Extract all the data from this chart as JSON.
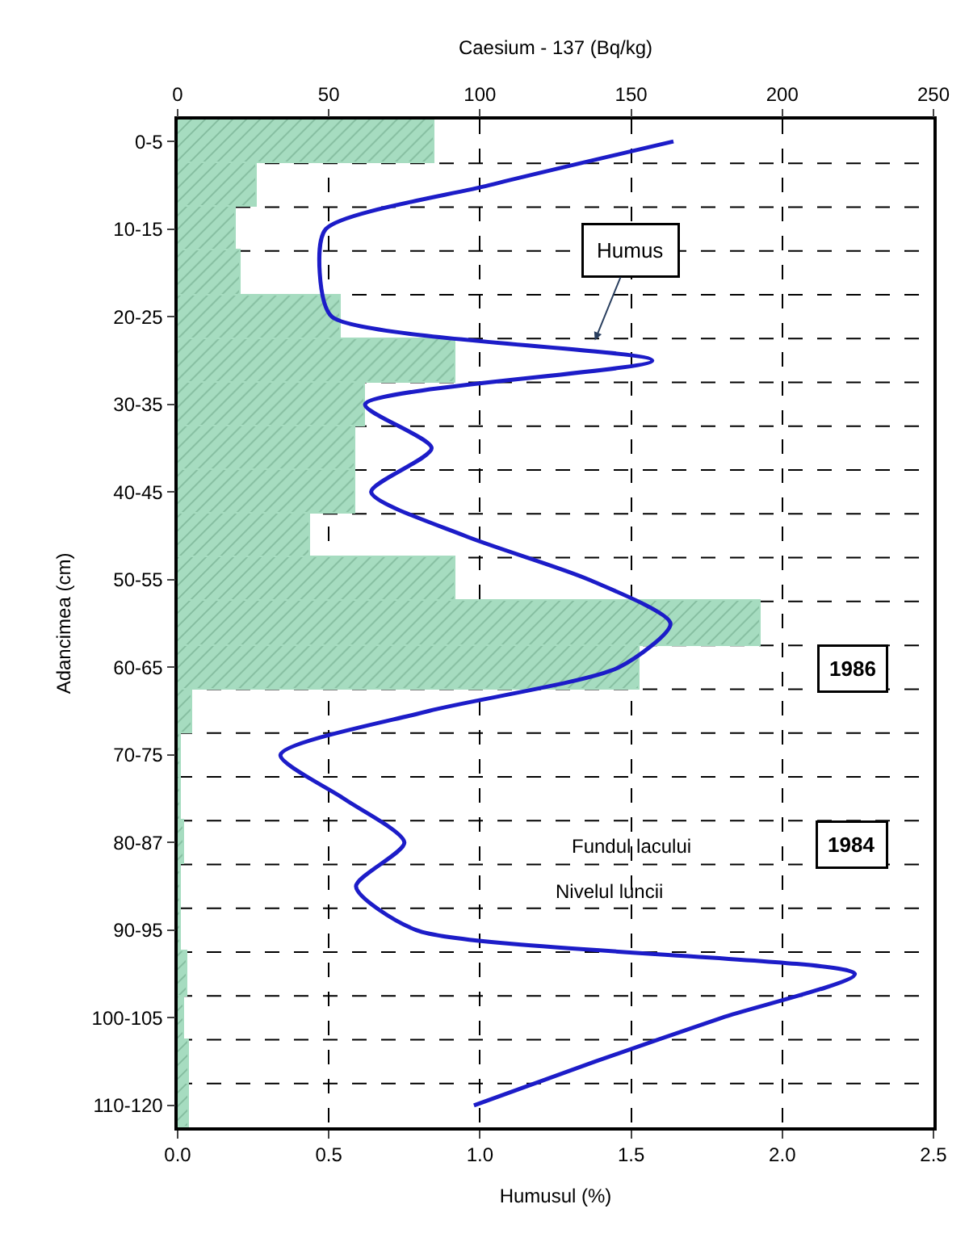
{
  "chart_data": {
    "type": "bar",
    "orientation": "horizontal",
    "categories": [
      "0-5",
      null,
      "10-15",
      null,
      "20-25",
      null,
      "30-35",
      null,
      "40-45",
      null,
      "50-55",
      null,
      "60-65",
      null,
      "70-75",
      null,
      "80-87",
      null,
      "90-95",
      null,
      "100-105",
      null,
      "110-120"
    ],
    "series": [
      {
        "axis": "x2",
        "color": "#a6dcc0",
        "values": [
          85,
          26,
          19,
          21,
          54,
          92,
          62,
          59,
          59,
          44,
          92,
          193,
          153,
          5,
          1,
          1,
          2,
          1,
          1,
          3,
          2,
          4,
          4
        ]
      },
      {
        "type": "line",
        "color": "#1c1cc8",
        "values": [
          1.64,
          1.03,
          0.49,
          0.47,
          0.51,
          1.57,
          0.62,
          0.84,
          0.64,
          0.95,
          1.36,
          1.63,
          1.46,
          0.83,
          0.34,
          0.55,
          0.75,
          0.59,
          0.79,
          2.24,
          1.8,
          1.38,
          0.98
        ]
      }
    ],
    "xlabel": "Humusul (%)",
    "ylabel": "Adancimea (cm)",
    "x2label": "Caesium - 137 (Bq/kg)",
    "xlim": [
      0,
      2.5
    ],
    "xticks": [
      {
        "value": 0,
        "label": "0.0"
      },
      {
        "value": 0.5,
        "label": "0.5"
      },
      {
        "value": 1,
        "label": "1.0"
      },
      {
        "value": 1.5,
        "label": "1.5"
      },
      {
        "value": 2,
        "label": "2.0"
      },
      {
        "value": 2.5,
        "label": "2.5"
      }
    ],
    "x2lim": [
      0,
      250
    ],
    "x2ticks": [
      0,
      50,
      100,
      150,
      200,
      250
    ],
    "annotations": [
      "Humus",
      "1986",
      "1984",
      "Fundul lacului",
      "Nivelul luncii"
    ],
    "grid": true,
    "marker": "none",
    "line_style": "solid"
  }
}
